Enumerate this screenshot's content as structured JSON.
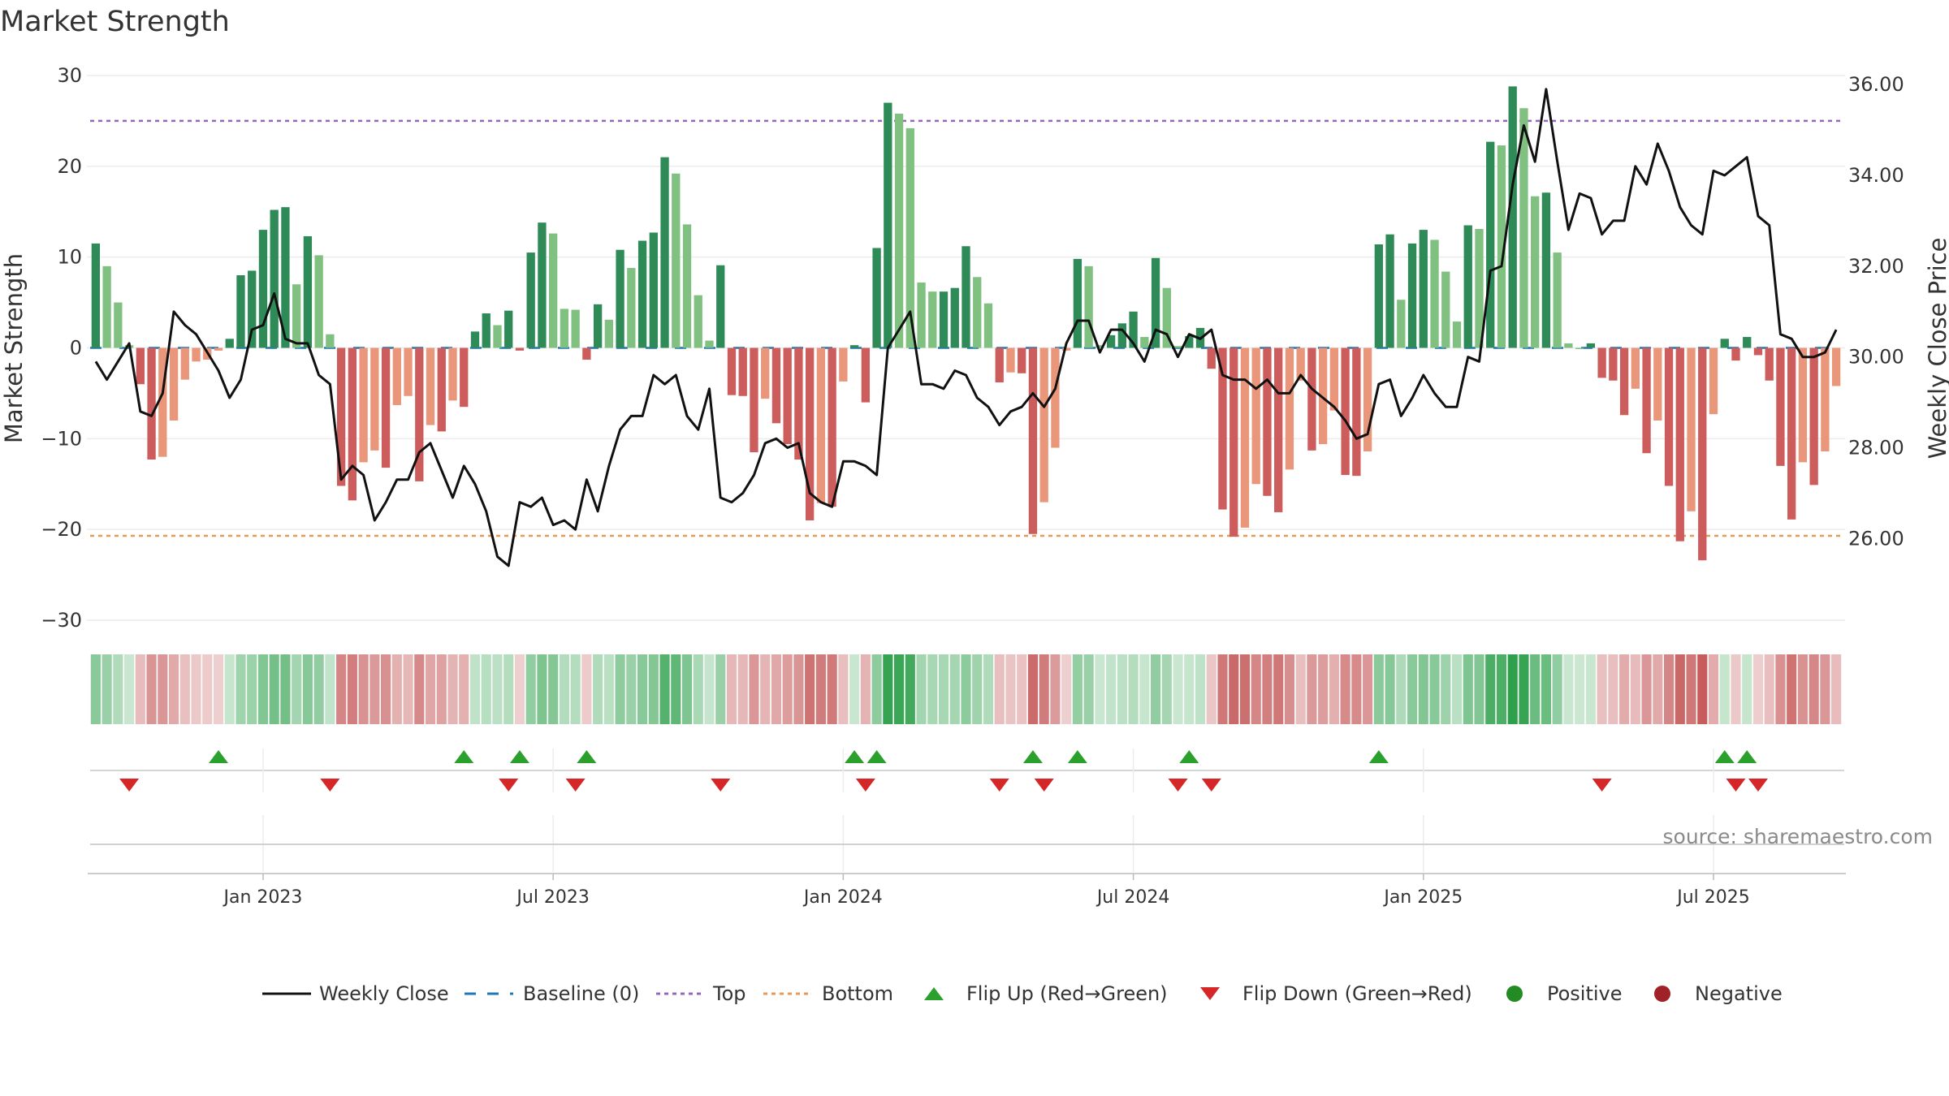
{
  "chart_data": {
    "type": "bar",
    "title": "Market Strength",
    "ylabel": "Market Strength",
    "ylabel_right": "Weekly Close Price",
    "ylim": [
      -30,
      30
    ],
    "yticks": [
      30,
      20,
      10,
      0,
      -10,
      -20,
      -30
    ],
    "ytick_labels": [
      "30",
      "20",
      "10",
      "0",
      "−10",
      "−20",
      "−30"
    ],
    "ylim_right": [
      24.2,
      36.2
    ],
    "yticks_right": [
      36,
      34,
      32,
      30,
      28,
      26
    ],
    "ytick_labels_right": [
      "36.00",
      "34.00",
      "32.00",
      "30.00",
      "28.00",
      "26.00"
    ],
    "top_line": 25,
    "bottom_line": -20.7,
    "xticks": [
      {
        "week": 15,
        "label": "Jan 2023"
      },
      {
        "week": 41,
        "label": "Jul 2023"
      },
      {
        "week": 67,
        "label": "Jan 2024"
      },
      {
        "week": 93,
        "label": "Jul 2024"
      },
      {
        "week": 119,
        "label": "Jan 2025"
      },
      {
        "week": 145,
        "label": "Jul 2025"
      }
    ],
    "strength": [
      11.5,
      9.0,
      5.0,
      0.3,
      -4.0,
      -12.3,
      -12.0,
      -8.0,
      -3.5,
      -1.5,
      -1.3,
      -0.3,
      1.0,
      8.0,
      8.5,
      13.0,
      15.2,
      15.5,
      7.0,
      12.3,
      10.2,
      1.5,
      -15.2,
      -16.8,
      -12.6,
      -11.3,
      -13.2,
      -6.3,
      -5.3,
      -14.7,
      -8.5,
      -9.2,
      -5.8,
      -6.5,
      1.8,
      3.8,
      2.5,
      4.1,
      -0.3,
      10.5,
      13.8,
      12.6,
      4.3,
      4.2,
      -1.3,
      4.8,
      3.1,
      10.8,
      8.8,
      11.8,
      12.7,
      21.0,
      19.2,
      13.6,
      5.8,
      0.8,
      9.1,
      -5.2,
      -5.3,
      -11.5,
      -5.6,
      -8.3,
      -10.6,
      -12.3,
      -19.0,
      -17.1,
      -17.5,
      -3.7,
      0.3,
      -6.0,
      11.0,
      27.0,
      25.8,
      24.2,
      7.2,
      6.2,
      6.2,
      6.6,
      11.2,
      7.8,
      4.9,
      -3.8,
      -2.7,
      -2.8,
      -20.5,
      -17.0,
      -11.0,
      -0.3,
      9.8,
      9.0,
      0.3,
      1.4,
      2.7,
      4.0,
      1.2,
      9.9,
      6.6,
      0.2,
      1.3,
      2.2,
      -2.3,
      -17.8,
      -20.8,
      -19.8,
      -15.0,
      -16.3,
      -18.1,
      -13.4,
      -3.6,
      -11.3,
      -10.6,
      -6.9,
      -14.0,
      -14.1,
      -11.4,
      11.4,
      12.5,
      5.3,
      11.5,
      13.0,
      11.9,
      8.4,
      2.9,
      13.5,
      13.1,
      22.7,
      22.3,
      28.8,
      26.4,
      16.7,
      17.1,
      10.5,
      0.5,
      0.0,
      0.5,
      -3.3,
      -3.6,
      -7.4,
      -4.5,
      -11.6,
      -8.0,
      -15.2,
      -21.3,
      -18.0,
      -23.4,
      -7.3,
      1.0,
      -1.4,
      1.2,
      -0.8,
      -3.6,
      -13.0,
      -18.9,
      -12.6,
      -15.1,
      -11.4,
      -4.2
    ],
    "weekly_close": [
      29.9,
      29.5,
      29.9,
      30.3,
      28.8,
      28.7,
      29.2,
      31.0,
      30.7,
      30.5,
      30.1,
      29.7,
      29.1,
      29.5,
      30.6,
      30.7,
      31.4,
      30.4,
      30.3,
      30.3,
      29.6,
      29.4,
      27.3,
      27.6,
      27.4,
      26.4,
      26.8,
      27.3,
      27.3,
      27.9,
      28.1,
      27.5,
      26.9,
      27.6,
      27.2,
      26.6,
      25.6,
      25.4,
      26.8,
      26.7,
      26.9,
      26.3,
      26.4,
      26.2,
      27.3,
      26.6,
      27.6,
      28.4,
      28.7,
      28.7,
      29.6,
      29.4,
      29.6,
      28.7,
      28.4,
      29.3,
      26.9,
      26.8,
      27.0,
      27.4,
      28.1,
      28.2,
      28.0,
      28.1,
      27.0,
      26.8,
      26.7,
      27.7,
      27.7,
      27.6,
      27.4,
      30.2,
      30.6,
      31.0,
      29.4,
      29.4,
      29.3,
      29.7,
      29.6,
      29.1,
      28.9,
      28.5,
      28.8,
      28.9,
      29.2,
      28.9,
      29.3,
      30.3,
      30.8,
      30.8,
      30.1,
      30.6,
      30.6,
      30.3,
      29.9,
      30.6,
      30.5,
      30.0,
      30.5,
      30.4,
      30.6,
      29.6,
      29.5,
      29.5,
      29.3,
      29.5,
      29.2,
      29.2,
      29.6,
      29.3,
      29.1,
      28.9,
      28.6,
      28.2,
      28.3,
      29.4,
      29.5,
      28.7,
      29.1,
      29.6,
      29.2,
      28.9,
      28.9,
      30.0,
      29.9,
      31.9,
      32.0,
      33.8,
      35.1,
      34.3,
      35.9,
      34.3,
      32.8,
      33.6,
      33.5,
      32.7,
      33.0,
      33.0,
      34.2,
      33.8,
      34.7,
      34.1,
      33.3,
      32.9,
      32.7,
      34.1,
      34.0,
      34.2,
      34.4,
      33.1,
      32.9,
      30.5,
      30.4,
      30.0,
      30.0,
      30.1,
      30.6
    ],
    "heat_strip": "per-week color intensity mirrors market strength (green positive, red negative)",
    "flip_up_weeks": [
      11,
      33,
      38,
      44,
      68,
      70,
      84,
      88,
      98,
      115,
      146,
      148
    ],
    "flip_down_weeks": [
      3,
      21,
      37,
      43,
      56,
      69,
      81,
      85,
      97,
      100,
      135,
      147,
      149
    ],
    "source": "source: sharemaestro.com",
    "colors": {
      "pos_dark": "#2e8b57",
      "pos_light": "#80c080",
      "neg_dark": "#cd5c5c",
      "neg_light": "#e9967a",
      "close_line": "#111111",
      "baseline": "#1f77b4",
      "top": "#9467bd",
      "bottom": "#e69a56",
      "flip_up": "#2ca02c",
      "flip_down": "#d62728",
      "positive_marker": "#228b22",
      "negative_marker": "#a02128"
    },
    "legend": [
      {
        "key": "close",
        "label": "Weekly Close"
      },
      {
        "key": "baseline",
        "label": "Baseline (0)"
      },
      {
        "key": "top",
        "label": "Top"
      },
      {
        "key": "bottom",
        "label": "Bottom"
      },
      {
        "key": "flipup",
        "label": "Flip Up (Red→Green)"
      },
      {
        "key": "flipdown",
        "label": "Flip Down (Green→Red)"
      },
      {
        "key": "positive",
        "label": "Positive"
      },
      {
        "key": "negative",
        "label": "Negative"
      }
    ]
  }
}
